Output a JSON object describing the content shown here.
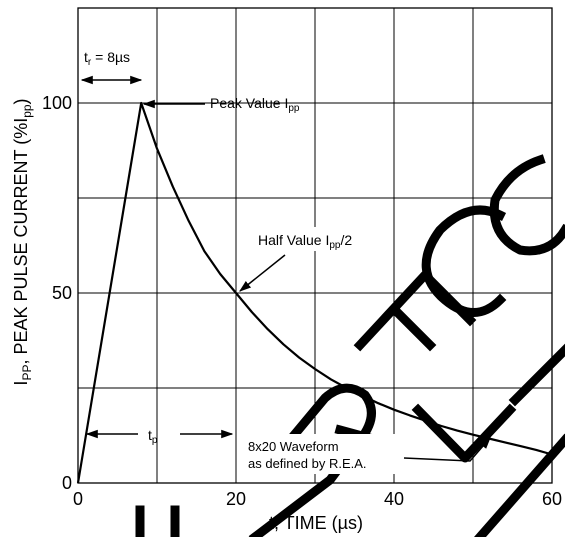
{
  "watermark": {
    "text": "NOT RECOMMENDED FOR NEW"
  },
  "chart_data": {
    "type": "line",
    "xlabel": "t, TIME (µs)",
    "ylabel": "I",
    "ylabel_sub": "PP",
    "ylabel_rest": ", PEAK PULSE CURRENT (%I",
    "ylabel_sub2": "pp",
    "ylabel_end": ")",
    "xlim": [
      0,
      60
    ],
    "ylim": [
      0,
      125
    ],
    "grid": true,
    "x_ticks": [
      0,
      20,
      40,
      60
    ],
    "x_tick_labels": [
      "0",
      "20",
      "40",
      "60"
    ],
    "y_ticks": [
      0,
      50,
      100
    ],
    "y_tick_labels": [
      "0",
      "50",
      "100"
    ],
    "series": [
      {
        "x": [
          0,
          8,
          10,
          12,
          14,
          16,
          18,
          20,
          22,
          24,
          26,
          28,
          30,
          32,
          34,
          36,
          38,
          40,
          42,
          44,
          46,
          48,
          50,
          52,
          54,
          56,
          58,
          60
        ],
        "y": [
          0,
          100,
          88,
          78,
          69,
          61,
          55,
          50,
          45,
          40.5,
          36.5,
          33,
          30,
          27.3,
          25,
          23,
          21,
          19.3,
          17.8,
          16.4,
          15,
          13.8,
          12.7,
          11.7,
          10.7,
          9.7,
          8.7,
          7.5
        ]
      }
    ],
    "annotations": {
      "tr": {
        "t": "t",
        "sub": "r",
        "rest": " = 8µs"
      },
      "peak": {
        "text": "Peak Value I",
        "sub": "pp"
      },
      "half": {
        "text": "Half Value I",
        "sub": "pp",
        "rest": "/2"
      },
      "tp": {
        "t": "t",
        "sub": "p"
      },
      "waveform": {
        "line1": "8x20 Waveform",
        "line2": "as defined by R.E.A."
      }
    }
  }
}
